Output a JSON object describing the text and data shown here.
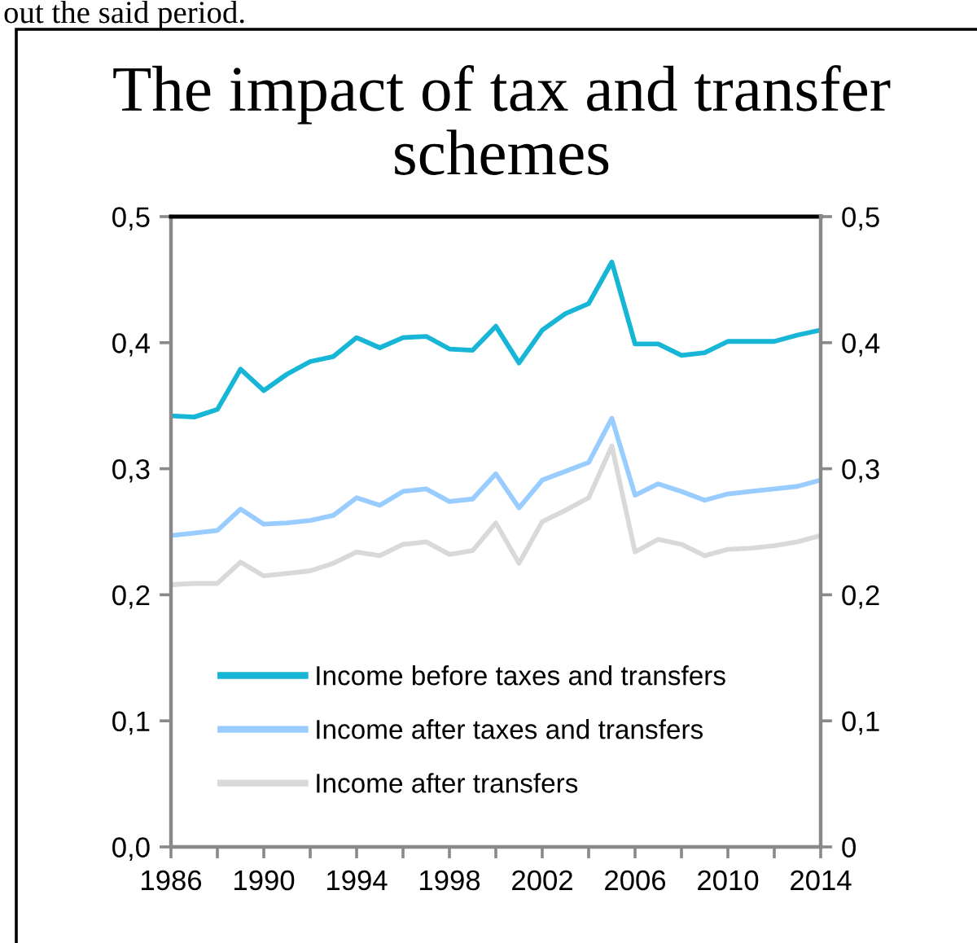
{
  "chart_data": {
    "type": "line",
    "title": "The impact of tax and transfer schemes",
    "annotations": [
      "out the said period."
    ],
    "x": [
      1986,
      1987,
      1988,
      1989,
      1990,
      1991,
      1992,
      1993,
      1994,
      1995,
      1996,
      1997,
      1998,
      1999,
      2000,
      2001,
      2002,
      2003,
      2004,
      2005,
      2006,
      2007,
      2008,
      2009,
      2010,
      2011,
      2012,
      2013,
      2014
    ],
    "series": [
      {
        "name": "Income before taxes and transfers",
        "color": "#17b6d6",
        "values": [
          0.342,
          0.341,
          0.347,
          0.379,
          0.362,
          0.375,
          0.385,
          0.389,
          0.404,
          0.396,
          0.404,
          0.405,
          0.395,
          0.394,
          0.413,
          0.384,
          0.41,
          0.423,
          0.431,
          0.464,
          0.399,
          0.399,
          0.39,
          0.392,
          0.401,
          0.401,
          0.401,
          0.406,
          0.41
        ]
      },
      {
        "name": "Income after taxes and transfers",
        "color": "#99ccff",
        "values": [
          0.247,
          0.249,
          0.251,
          0.268,
          0.256,
          0.257,
          0.259,
          0.263,
          0.277,
          0.271,
          0.282,
          0.284,
          0.274,
          0.276,
          0.296,
          0.269,
          0.291,
          0.298,
          0.305,
          0.34,
          0.279,
          0.288,
          0.282,
          0.275,
          0.28,
          0.282,
          0.284,
          0.286,
          0.291
        ]
      },
      {
        "name": "Income after transfers",
        "color": "#d9d9d9",
        "values": [
          0.208,
          0.209,
          0.209,
          0.226,
          0.215,
          0.217,
          0.219,
          0.225,
          0.234,
          0.231,
          0.24,
          0.242,
          0.232,
          0.235,
          0.257,
          0.225,
          0.258,
          0.267,
          0.277,
          0.318,
          0.234,
          0.244,
          0.24,
          0.231,
          0.236,
          0.237,
          0.239,
          0.242,
          0.247
        ]
      }
    ],
    "xlim": [
      1986,
      2014
    ],
    "xticks": [
      1986,
      {
        "value": 1988,
        "label": null
      },
      1990,
      {
        "value": 1992,
        "label": null
      },
      1994,
      {
        "value": 1996,
        "label": null
      },
      1998,
      {
        "value": 2000,
        "label": null
      },
      2002,
      {
        "value": 2004,
        "label": null
      },
      2006,
      {
        "value": 2008,
        "label": null
      },
      2010,
      {
        "value": 2012,
        "label": null
      },
      2014
    ],
    "ylim": [
      0,
      0.5
    ],
    "yticks": [
      {
        "value": 0,
        "label": "0,0"
      },
      {
        "value": 0.1,
        "label": "0,1"
      },
      {
        "value": 0.2,
        "label": "0,2"
      },
      {
        "value": 0.3,
        "label": "0,3"
      },
      {
        "value": 0.4,
        "label": "0,4"
      },
      {
        "value": 0.5,
        "label": "0,5"
      }
    ],
    "y2lim": [
      0,
      0.5
    ],
    "y2ticks": [
      {
        "value": 0,
        "label": "0"
      },
      {
        "value": 0.1,
        "label": "0,1"
      },
      {
        "value": 0.2,
        "label": "0,2"
      },
      {
        "value": 0.3,
        "label": "0,3"
      },
      {
        "value": 0.4,
        "label": "0,4"
      },
      {
        "value": 0.5,
        "label": "0,5"
      }
    ],
    "legend": "bottom left"
  }
}
